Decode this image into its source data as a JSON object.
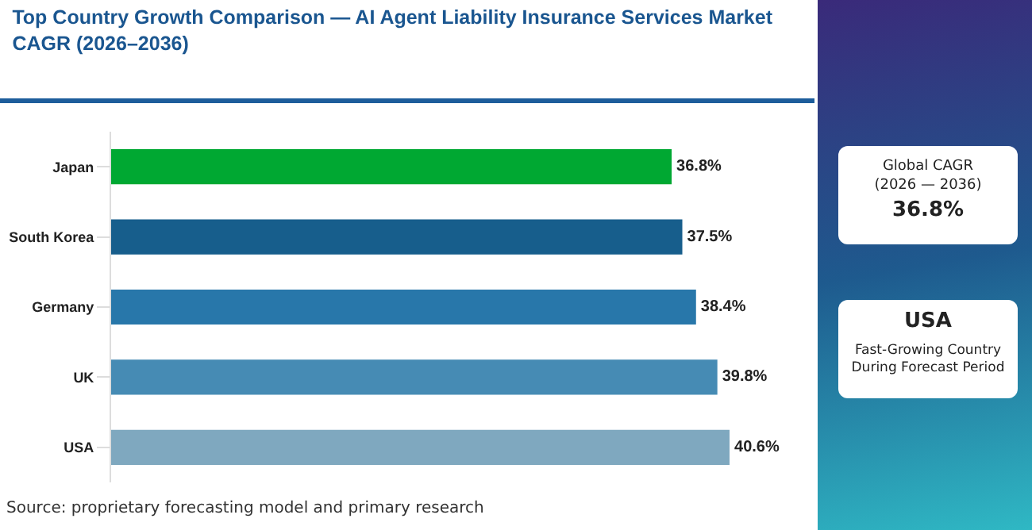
{
  "chart_data": {
    "type": "bar",
    "orientation": "horizontal",
    "title": "Top Country Growth Comparison — AI Agent Liability Insurance Services Market CAGR (2026–2036)",
    "categories": [
      "Japan",
      "South Korea",
      "Germany",
      "UK",
      "USA"
    ],
    "values": [
      36.8,
      37.5,
      38.4,
      39.8,
      40.6
    ],
    "colors": [
      "#00a832",
      "#175e8c",
      "#2877aa",
      "#468bb4",
      "#7fa8bf"
    ],
    "value_labels": [
      "36.8%",
      "37.5%",
      "38.4%",
      "39.8%",
      "40.6%"
    ],
    "tick_labels": "y",
    "grid": false,
    "legend": false,
    "annotations": [
      "Source: proprietary forecasting model and primary research",
      "Global CAGR\n(2026 — 2036)",
      "36.8%",
      "USA",
      "Fast-Growing Country\nDuring Forecast Period"
    ]
  }
}
